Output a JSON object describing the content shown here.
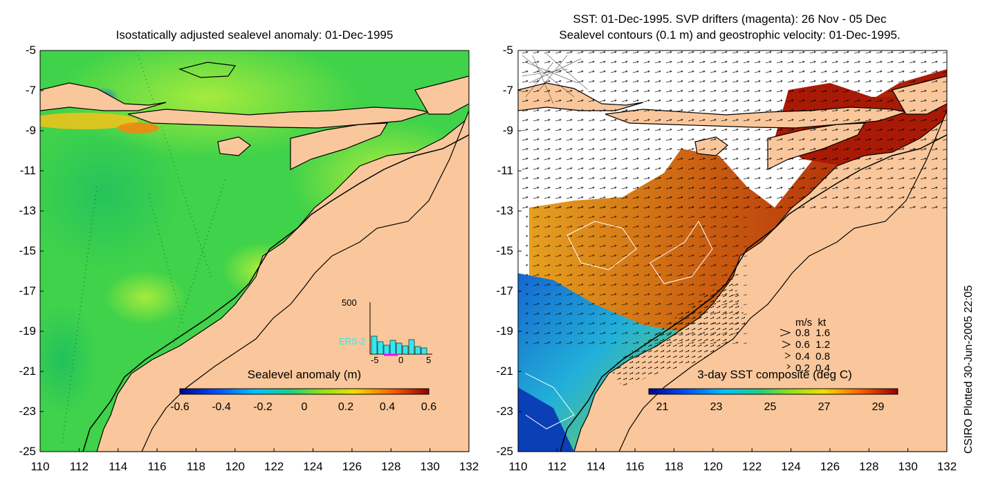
{
  "left_panel": {
    "title": "Isostatically adjusted sealevel anomaly: 01-Dec-1995",
    "colorbar_label": "Sealevel anomaly (m)",
    "colorbar_ticks": [
      "-0.6",
      "-0.4",
      "-0.2",
      "0",
      "0.2",
      "0.4",
      "0.6"
    ],
    "inset": {
      "ymax_label": "500",
      "satellite": "ERS-2",
      "x_ticks": [
        "-5",
        "0",
        "5"
      ]
    }
  },
  "right_panel": {
    "title_line1": "SST: 01-Dec-1995. SVP drifters (magenta): 26 Nov - 05 Dec",
    "title_line2": "Sealevel contours (0.1 m) and geostrophic velocity: 01-Dec-1995.",
    "colorbar_label": "3-day SST composite (deg C)",
    "colorbar_ticks": [
      "21",
      "23",
      "25",
      "27",
      "29"
    ],
    "velocity_legend": {
      "header": "m/s  kt",
      "rows": [
        "0.8  1.6",
        "0.6  1.2",
        "0.4  0.8",
        "0.2  0.4"
      ]
    }
  },
  "axes": {
    "y_ticks": [
      "-5",
      "-7",
      "-9",
      "-11",
      "-13",
      "-15",
      "-17",
      "-19",
      "-21",
      "-23",
      "-25"
    ],
    "x_ticks": [
      "110",
      "112",
      "114",
      "116",
      "118",
      "120",
      "122",
      "124",
      "126",
      "128",
      "130",
      "132"
    ]
  },
  "credit": "CSIRO Plotted 30-Jun-2005 22:05",
  "colors": {
    "land": "#f9c79b",
    "sla_background": "#3fd24a",
    "sst_warm": "#a81a05",
    "sst_cool": "#1d9fd6"
  }
}
